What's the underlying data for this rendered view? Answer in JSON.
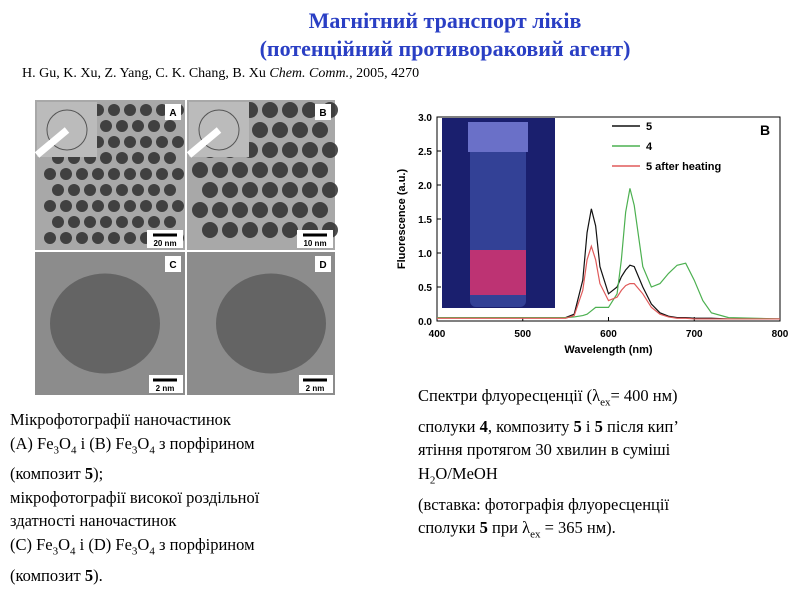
{
  "title": [
    "Магнітний транспорт ліків",
    "(потенційний противораковий агент)"
  ],
  "citation": {
    "authors": "H. Gu, K. Xu, Z. Yang, C. K. Chang, B. Xu ",
    "journal": "Chem. Comm.,",
    "ref": " 2005, 4270"
  },
  "micrographs": [
    {
      "label": "A",
      "scale": "20 nm"
    },
    {
      "label": "B",
      "scale": "10 nm"
    },
    {
      "label": "C",
      "scale": "2 nm"
    },
    {
      "label": "D",
      "scale": "2 nm"
    }
  ],
  "left_caption": [
    [
      "Мікрофотографії наночастинок"
    ],
    [
      "(A) Fe",
      "3",
      "O",
      "4",
      " і (B) Fe",
      "3",
      "O",
      "4",
      " з порфірином"
    ],
    [
      "(композит ",
      "5",
      ");"
    ],
    [
      "мікрофотографії високої роздільної"
    ],
    [
      "здатності наночастинок"
    ],
    [
      "(C) Fe",
      "3",
      "O",
      "4",
      " і (D) Fe",
      "3",
      "O",
      "4",
      " з порфірином"
    ],
    [
      "(композит ",
      "5",
      ")."
    ]
  ],
  "right_caption": [
    [
      "Спектри флуоресценції (λ",
      "ex",
      "= 400 нм)"
    ],
    [
      "сполуки ",
      "4",
      ", композиту ",
      "5",
      " і ",
      "5",
      " після кип’"
    ],
    [
      "ятіння протягом 30 хвилин в суміші"
    ],
    [
      "H",
      "2",
      "O/MeOH"
    ],
    [
      "(вставка: фотографія флуоресценції"
    ],
    [
      "сполуки ",
      "5",
      " при λ",
      "ex",
      " = 365 нм)."
    ]
  ],
  "chart_data": {
    "type": "line",
    "panel_label": "B",
    "x_label": "Wavelength (nm)",
    "y_label": "Fluorescence (a.u.)",
    "x": [
      400,
      500,
      550,
      560,
      570,
      575,
      580,
      585,
      590,
      600,
      610,
      615,
      620,
      625,
      630,
      640,
      650,
      660,
      670,
      680,
      690,
      700,
      710,
      720,
      740,
      800
    ],
    "series": [
      {
        "name": "5",
        "color": "#111111",
        "values": [
          0.05,
          0.05,
          0.05,
          0.1,
          0.6,
          1.3,
          1.65,
          1.4,
          0.8,
          0.4,
          0.5,
          0.65,
          0.75,
          0.82,
          0.8,
          0.5,
          0.25,
          0.12,
          0.07,
          0.05,
          0.05,
          0.04,
          0.04,
          0.04,
          0.03,
          0.03
        ]
      },
      {
        "name": "4",
        "color": "#4cb050",
        "values": [
          0.05,
          0.05,
          0.05,
          0.06,
          0.08,
          0.1,
          0.15,
          0.2,
          0.2,
          0.2,
          0.4,
          0.9,
          1.6,
          1.95,
          1.7,
          0.8,
          0.5,
          0.55,
          0.7,
          0.82,
          0.85,
          0.6,
          0.3,
          0.12,
          0.05,
          0.03
        ]
      },
      {
        "name": "5 after heating",
        "color": "#e05a5a",
        "values": [
          0.04,
          0.04,
          0.04,
          0.08,
          0.45,
          0.9,
          1.1,
          0.9,
          0.55,
          0.3,
          0.35,
          0.45,
          0.52,
          0.55,
          0.55,
          0.4,
          0.2,
          0.1,
          0.06,
          0.04,
          0.04,
          0.03,
          0.03,
          0.03,
          0.03,
          0.03
        ]
      }
    ],
    "xlim": [
      400,
      800
    ],
    "xticks": [
      400,
      500,
      600,
      700,
      800
    ],
    "ylim": [
      0,
      3
    ],
    "yticks": [
      {
        "value": 0,
        "label": "0.0"
      },
      0.5,
      {
        "value": 1,
        "label": "1.0"
      },
      1.5,
      {
        "value": 2,
        "label": "2.0"
      },
      2.5,
      {
        "value": 3,
        "label": "3.0"
      }
    ]
  }
}
